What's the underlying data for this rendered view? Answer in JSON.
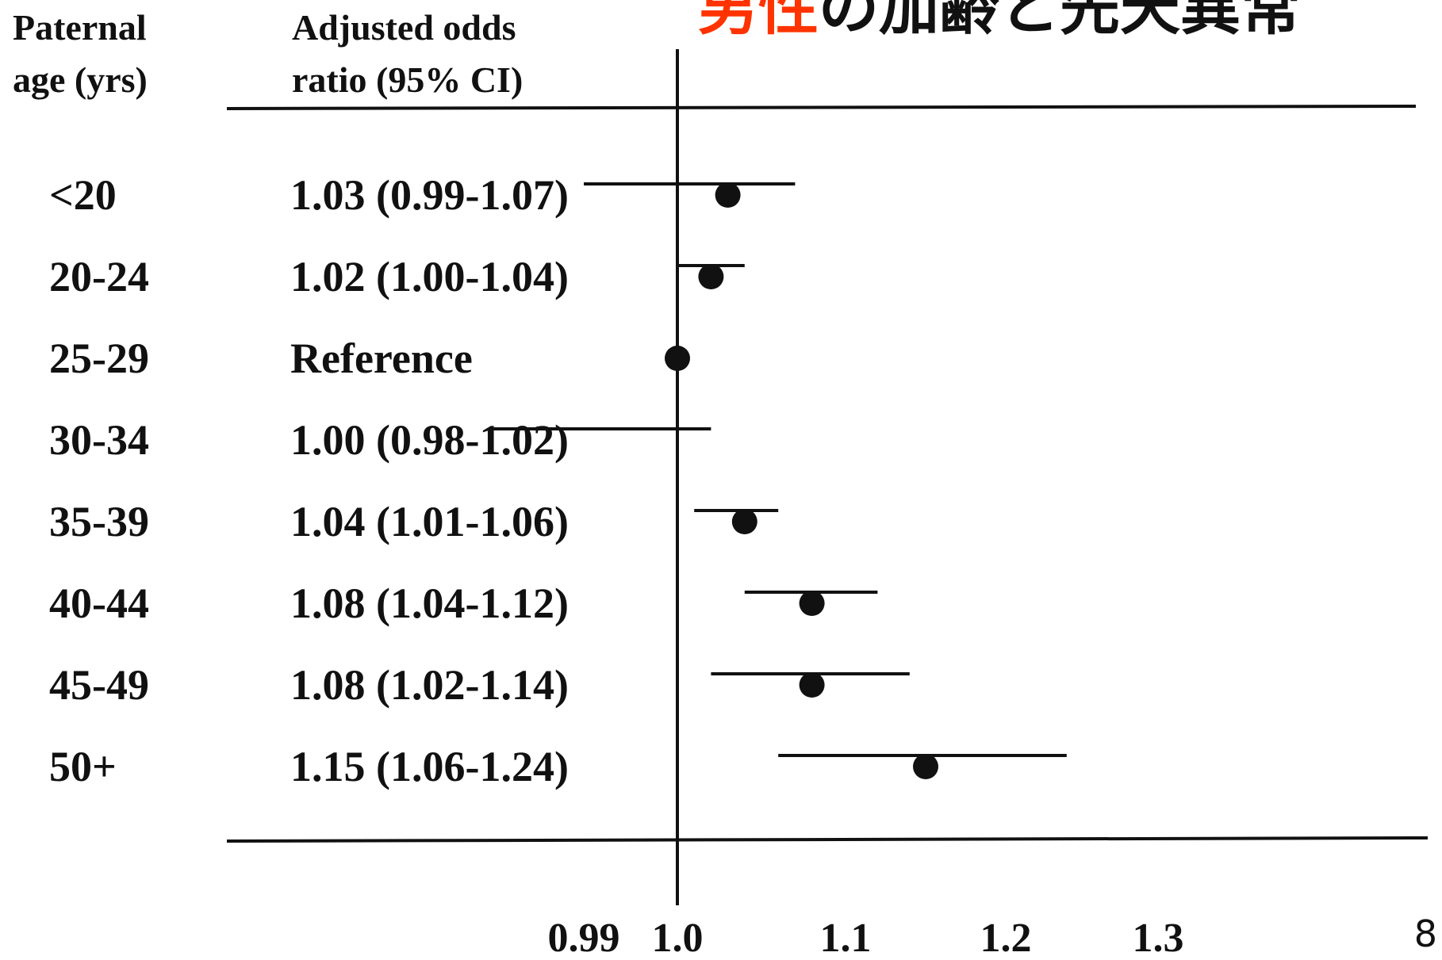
{
  "slide": {
    "title_accent": "男性",
    "title_rest": "の加齢と先天異常",
    "page_number": "8"
  },
  "columns": {
    "age_header": "Paternal\nage (yrs)",
    "or_header": "Adjusted odds\nratio (95% CI)"
  },
  "chart_data": {
    "type": "forest",
    "xlabel": "",
    "x_ticks": [
      {
        "value": 0.99,
        "label": "0.99"
      },
      {
        "value": 1.0,
        "label": "1.0"
      },
      {
        "value": 1.1,
        "label": "1.1"
      },
      {
        "value": 1.2,
        "label": "1.2"
      },
      {
        "value": 1.3,
        "label": "1.3"
      }
    ],
    "reference_line": 1.0,
    "rows": [
      {
        "label": "<20",
        "or_text": "1.03 (0.99-1.07)",
        "or": 1.03,
        "ci": [
          0.99,
          1.07
        ]
      },
      {
        "label": "20-24",
        "or_text": "1.02 (1.00-1.04)",
        "or": 1.02,
        "ci": [
          1.0,
          1.04
        ]
      },
      {
        "label": "25-29",
        "or_text": "Reference",
        "or": 1.0,
        "ci": null
      },
      {
        "label": "30-34",
        "or_text": "1.00 (0.98-1.02)",
        "or": 1.0,
        "ci": [
          0.98,
          1.02
        ]
      },
      {
        "label": "35-39",
        "or_text": "1.04 (1.01-1.06)",
        "or": 1.04,
        "ci": [
          1.01,
          1.06
        ]
      },
      {
        "label": "40-44",
        "or_text": "1.08 (1.04-1.12)",
        "or": 1.08,
        "ci": [
          1.04,
          1.12
        ]
      },
      {
        "label": "45-49",
        "or_text": "1.08 (1.02-1.14)",
        "or": 1.08,
        "ci": [
          1.02,
          1.14
        ]
      },
      {
        "label": "50+",
        "or_text": "1.15 (1.06-1.24)",
        "or": 1.15,
        "ci": [
          1.06,
          1.24
        ]
      }
    ],
    "colors": {
      "ink": "#111111",
      "accent": "#ff3300"
    }
  }
}
